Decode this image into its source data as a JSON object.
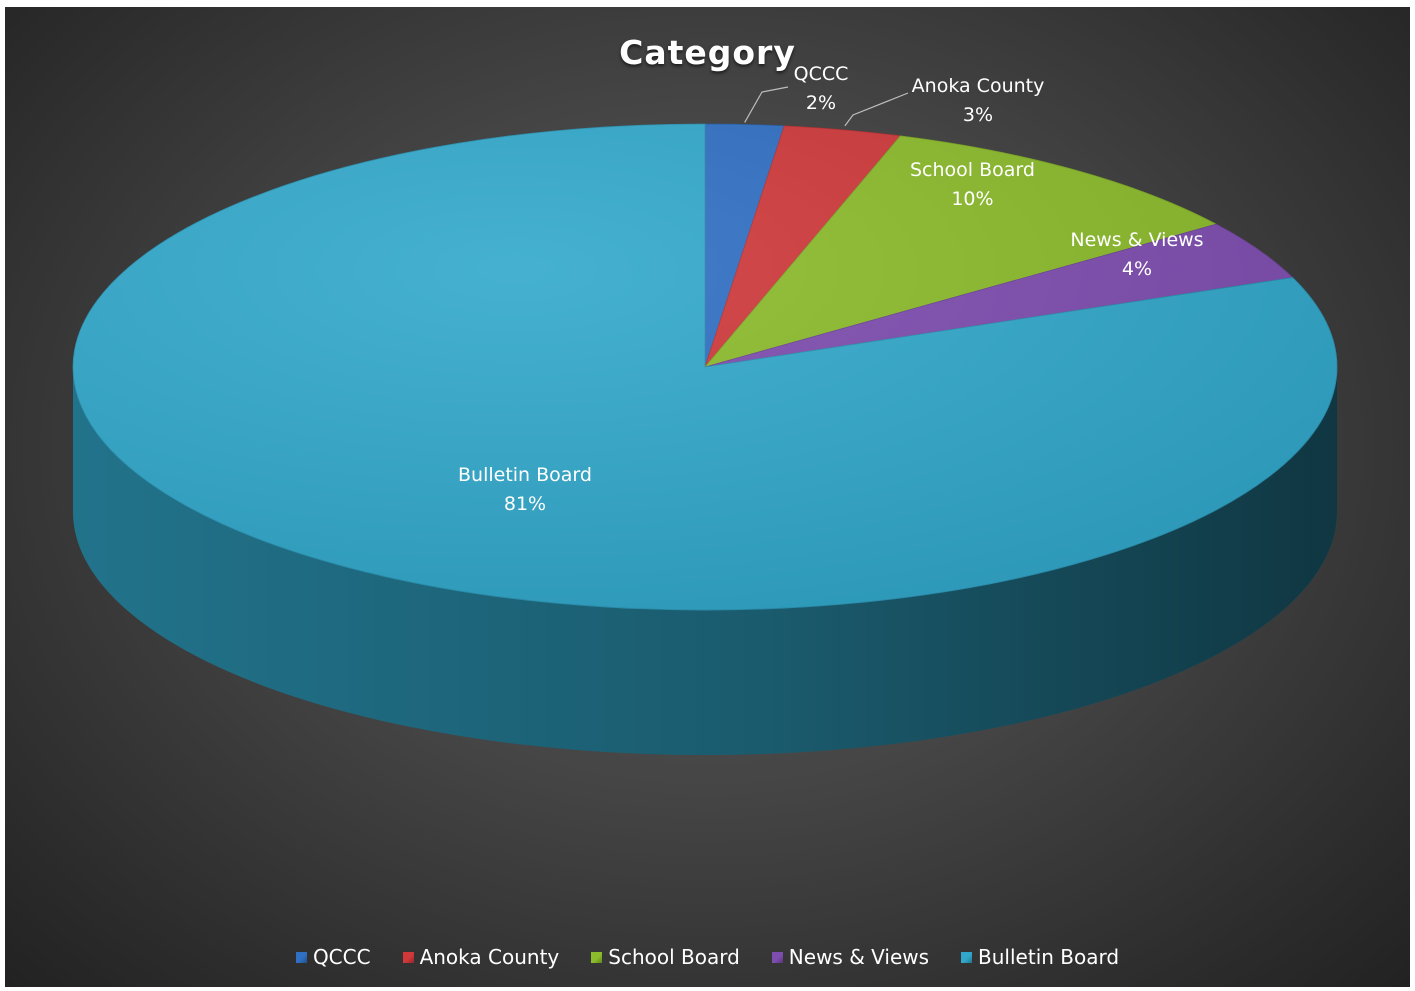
{
  "chart_data": {
    "type": "pie",
    "title": "Category",
    "categories": [
      "QCCC",
      "Anoka County",
      "School Board",
      "News & Views",
      "Bulletin Board"
    ],
    "values": [
      2,
      3,
      10,
      4,
      81
    ],
    "value_labels": [
      "2%",
      "3%",
      "10%",
      "4%",
      "81%"
    ],
    "colors": [
      "#2f6fc4",
      "#d0383a",
      "#8cbc2b",
      "#7e4db0",
      "#31a8cb"
    ],
    "legend_position": "bottom",
    "style": "3d"
  }
}
